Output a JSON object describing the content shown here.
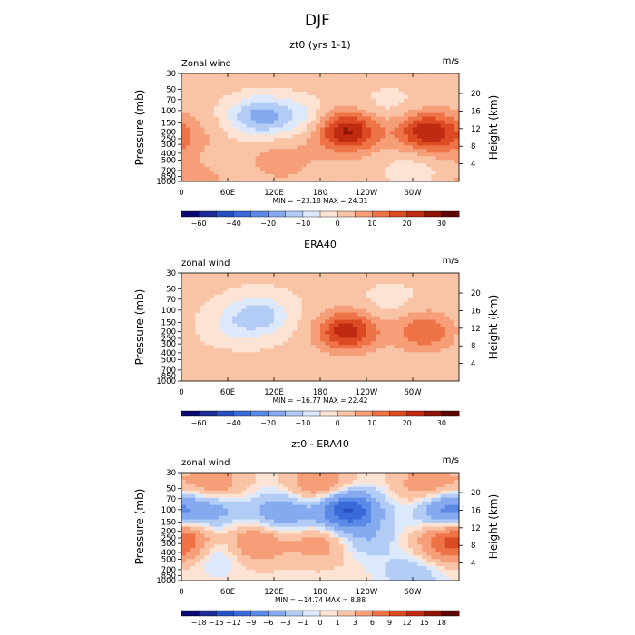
{
  "main_title": "DJF",
  "chart_data": [
    {
      "type": "heatmap",
      "title": "zt0 (yrs 1-1)",
      "variable_label": "Zonal wind",
      "units": "m/s",
      "stats": "MIN = −23.18   MAX =  24.31",
      "xlabel": "",
      "ylabel": "Pressure (mb)",
      "y2label": "Height (km)",
      "x_ticks": [
        "0",
        "60E",
        "120E",
        "180",
        "120W",
        "60W"
      ],
      "y_ticks": [
        "30",
        "50",
        "70",
        "100",
        "150",
        "200",
        "250",
        "300",
        "400",
        "500",
        "700",
        "850",
        "1000"
      ],
      "y2_ticks": [
        "20",
        "16",
        "12",
        "8",
        "4"
      ],
      "xlim_deg": [
        0,
        360
      ],
      "ylim_mb": [
        1000,
        30
      ],
      "colorbar_labels": [
        "−60",
        "−40",
        "−20",
        "−10",
        "0",
        "10",
        "20",
        "30"
      ],
      "levels": [
        -60,
        -50,
        -40,
        -30,
        -20,
        -15,
        -10,
        -5,
        0,
        5,
        10,
        15,
        20,
        25,
        30
      ],
      "colors": [
        "#08086e",
        "#1c2e96",
        "#2650c2",
        "#3a6ad8",
        "#5a8ae6",
        "#86aaf0",
        "#b2ccf6",
        "#dce8fb",
        "#fde3d4",
        "#f9c4a6",
        "#f59e78",
        "#ee7448",
        "#dc4a24",
        "#c02a10",
        "#8e1408",
        "#5c0804"
      ],
      "base_value": 2,
      "features": [
        {
          "lon": 20,
          "mb": 1000,
          "value": 5
        },
        {
          "lon": 100,
          "mb": 120,
          "value": -18
        },
        {
          "lon": 215,
          "mb": 200,
          "value": 24
        },
        {
          "lon": 318,
          "mb": 200,
          "value": 21
        },
        {
          "lon": 150,
          "mb": 120,
          "value": -8
        },
        {
          "lon": 130,
          "mb": 500,
          "value": 6
        },
        {
          "lon": 270,
          "mb": 80,
          "value": -4
        },
        {
          "lon": 300,
          "mb": 700,
          "value": -5
        },
        {
          "lon": 0,
          "mb": 250,
          "value": 6
        }
      ]
    },
    {
      "type": "heatmap",
      "title": "ERA40",
      "variable_label": "zonal wind",
      "units": "m/s",
      "stats": "MIN = −16.77   MAX =  22.42",
      "xlabel": "",
      "ylabel": "Pressure (mb)",
      "y2label": "Height (km)",
      "x_ticks": [
        "0",
        "60E",
        "120E",
        "180",
        "120W",
        "60W"
      ],
      "y_ticks": [
        "30",
        "50",
        "70",
        "100",
        "150",
        "200",
        "250",
        "300",
        "400",
        "500",
        "700",
        "850",
        "1000"
      ],
      "y2_ticks": [
        "20",
        "16",
        "12",
        "8",
        "4"
      ],
      "xlim_deg": [
        0,
        360
      ],
      "ylim_mb": [
        1000,
        30
      ],
      "colorbar_labels": [
        "−60",
        "−40",
        "−20",
        "−10",
        "0",
        "10",
        "20",
        "30"
      ],
      "levels": [
        -60,
        -50,
        -40,
        -30,
        -20,
        -15,
        -10,
        -5,
        0,
        5,
        10,
        15,
        20,
        25,
        30
      ],
      "colors": [
        "#08086e",
        "#1c2e96",
        "#2650c2",
        "#3a6ad8",
        "#5a8ae6",
        "#86aaf0",
        "#b2ccf6",
        "#dce8fb",
        "#fde3d4",
        "#f9c4a6",
        "#f59e78",
        "#ee7448",
        "#dc4a24",
        "#c02a10",
        "#8e1408",
        "#5c0804"
      ],
      "base_value": 1,
      "features": [
        {
          "lon": 100,
          "mb": 120,
          "value": -14
        },
        {
          "lon": 215,
          "mb": 200,
          "value": 22
        },
        {
          "lon": 315,
          "mb": 200,
          "value": 14
        },
        {
          "lon": 60,
          "mb": 180,
          "value": -5
        },
        {
          "lon": 270,
          "mb": 80,
          "value": -3
        },
        {
          "lon": 40,
          "mb": 800,
          "value": 4
        }
      ]
    },
    {
      "type": "heatmap",
      "title": "zt0 - ERA40",
      "variable_label": "zonal wind",
      "units": "m/s",
      "stats": "MIN = −14.74   MAX =    8.88",
      "xlabel": "",
      "ylabel": "Pressure (mb)",
      "y2label": "Height (km)",
      "x_ticks": [
        "0",
        "60E",
        "120E",
        "180",
        "120W",
        "60W"
      ],
      "y_ticks": [
        "30",
        "50",
        "70",
        "100",
        "150",
        "200",
        "250",
        "300",
        "400",
        "500",
        "700",
        "850",
        "1000"
      ],
      "y2_ticks": [
        "20",
        "16",
        "12",
        "8",
        "4"
      ],
      "xlim_deg": [
        0,
        360
      ],
      "ylim_mb": [
        1000,
        30
      ],
      "colorbar_labels": [
        "−18",
        "−15",
        "−12",
        "−9",
        "−6",
        "−3",
        "−1",
        "0",
        "1",
        "3",
        "6",
        "9",
        "12",
        "15",
        "18"
      ],
      "levels": [
        -18,
        -15,
        -12,
        -9,
        -6,
        -3,
        -1,
        0,
        1,
        3,
        6,
        9,
        12,
        15,
        18
      ],
      "colors": [
        "#08086e",
        "#1c2e96",
        "#2650c2",
        "#3a6ad8",
        "#5a8ae6",
        "#86aaf0",
        "#b2ccf6",
        "#dce8fb",
        "#fde3d4",
        "#f9c4a6",
        "#f59e78",
        "#ee7448",
        "#dc4a24",
        "#c02a10",
        "#8e1408",
        "#5c0804"
      ],
      "base_value": 0.5,
      "features": [
        {
          "lon": 180,
          "mb": 45,
          "value": 6
        },
        {
          "lon": 40,
          "mb": 45,
          "value": 5
        },
        {
          "lon": 320,
          "mb": 45,
          "value": 5
        },
        {
          "lon": 215,
          "mb": 100,
          "value": -13
        },
        {
          "lon": 130,
          "mb": 110,
          "value": -6
        },
        {
          "lon": 345,
          "mb": 100,
          "value": -8
        },
        {
          "lon": 40,
          "mb": 100,
          "value": -5
        },
        {
          "lon": 95,
          "mb": 300,
          "value": 6
        },
        {
          "lon": 345,
          "mb": 300,
          "value": 6
        },
        {
          "lon": 5,
          "mb": 250,
          "value": 5
        },
        {
          "lon": 180,
          "mb": 300,
          "value": 4
        },
        {
          "lon": 240,
          "mb": 260,
          "value": -3
        },
        {
          "lon": 50,
          "mb": 400,
          "value": -3
        },
        {
          "lon": 300,
          "mb": 800,
          "value": -3
        }
      ]
    }
  ]
}
